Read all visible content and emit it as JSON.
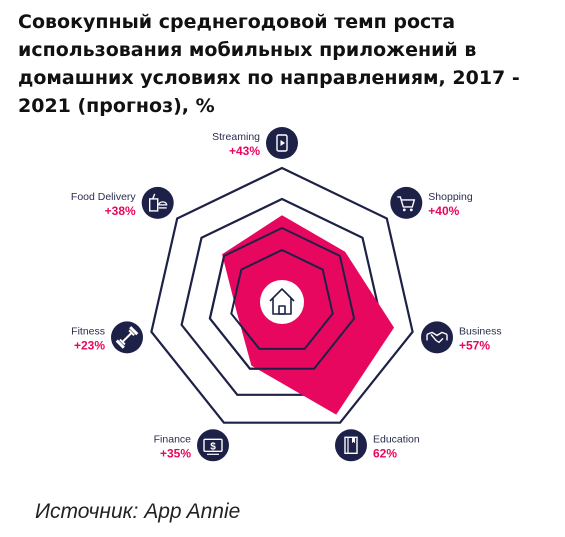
{
  "title": "Совокупный среднегодовой темп роста использования мобильных приложений в домашних условиях по направлениям, 2017 - 2021 (прогноз), %",
  "source": "Источник: App Annie",
  "colors": {
    "accent": "#e8075e",
    "navy": "#1e2147",
    "white": "#ffffff"
  },
  "chart_data": {
    "type": "radar",
    "title": "Совокупный среднегодовой темп роста использования мобильных приложений в домашних условиях по направлениям, 2017 - 2021 (прогноз), %",
    "center_icon": "home-icon",
    "grid": true,
    "categories": [
      {
        "name": "Streaming",
        "label": "+43%",
        "value": 43,
        "icon": "streaming-icon"
      },
      {
        "name": "Shopping",
        "label": "+40%",
        "value": 40,
        "icon": "shopping-cart-icon"
      },
      {
        "name": "Business",
        "label": "+57%",
        "value": 57,
        "icon": "handshake-icon"
      },
      {
        "name": "Education",
        "label": "62%",
        "value": 62,
        "icon": "book-icon"
      },
      {
        "name": "Finance",
        "label": "+35%",
        "value": 35,
        "icon": "cash-icon"
      },
      {
        "name": "Fitness",
        "label": "+23%",
        "value": 23,
        "icon": "dumbbell-icon"
      },
      {
        "name": "Food Delivery",
        "label": "+38%",
        "value": 38,
        "icon": "food-delivery-icon"
      }
    ]
  }
}
